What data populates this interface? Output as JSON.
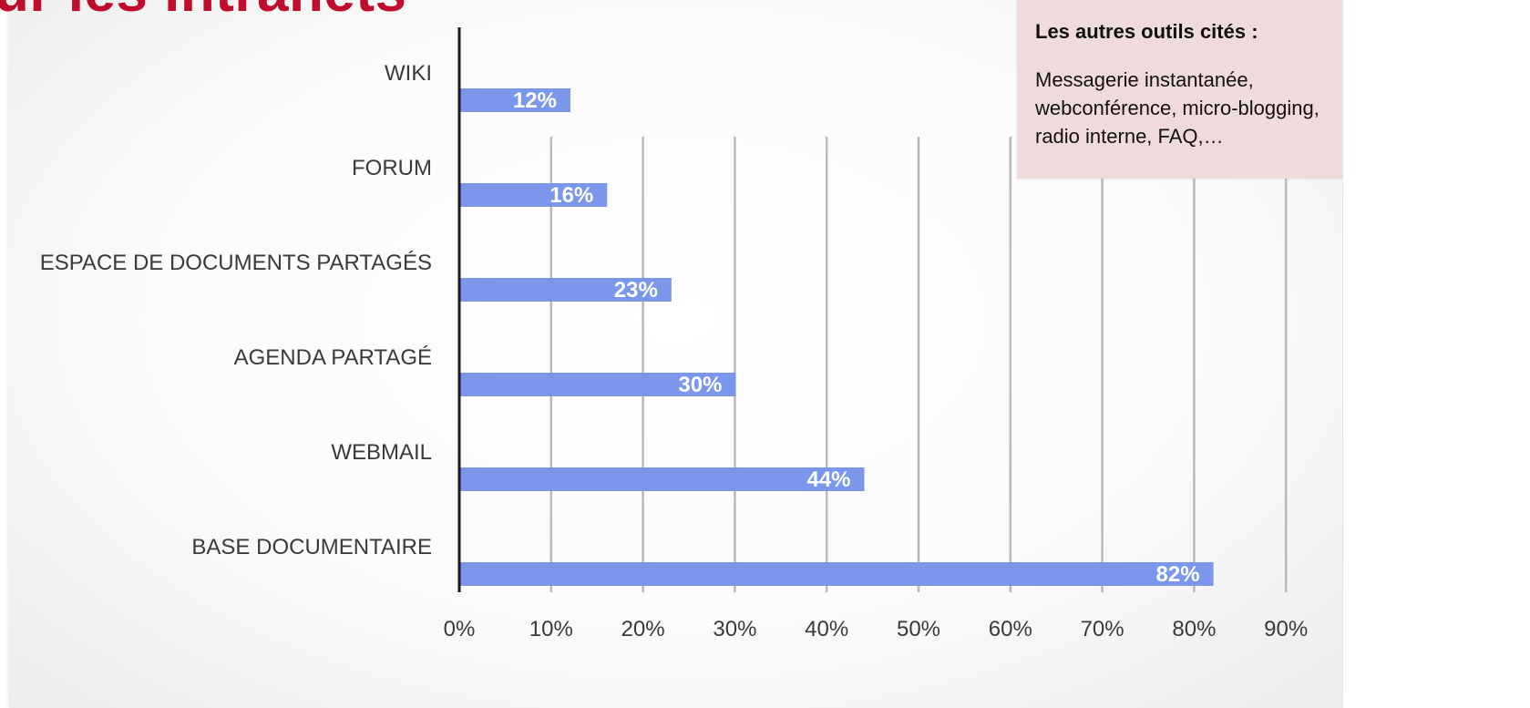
{
  "slide": {
    "title": "ur les intranets",
    "title_color": "#c00d2b"
  },
  "callout": {
    "title": "Les autres outils cités :",
    "body": "Messagerie instantanée, webconférence, micro-blogging, radio interne, FAQ,…",
    "background": "#efdbdb"
  },
  "chart_data": {
    "type": "bar",
    "orientation": "horizontal",
    "categories": [
      "WIKI",
      "FORUM",
      "ESPACE DE DOCUMENTS PARTAGÉS",
      "AGENDA PARTAGÉ",
      "WEBMAIL",
      "BASE DOCUMENTAIRE"
    ],
    "values": [
      12,
      16,
      23,
      30,
      44,
      82
    ],
    "data_labels": [
      "12%",
      "16%",
      "23%",
      "30%",
      "44%",
      "82%"
    ],
    "xlim": [
      0,
      90
    ],
    "xticks": [
      0,
      10,
      20,
      30,
      40,
      50,
      60,
      70,
      80,
      90
    ],
    "xtick_labels": [
      "0%",
      "10%",
      "20%",
      "30%",
      "40%",
      "50%",
      "60%",
      "70%",
      "80%",
      "90%"
    ],
    "bar_color": "#7b97ec",
    "grid": true,
    "legend": false
  }
}
